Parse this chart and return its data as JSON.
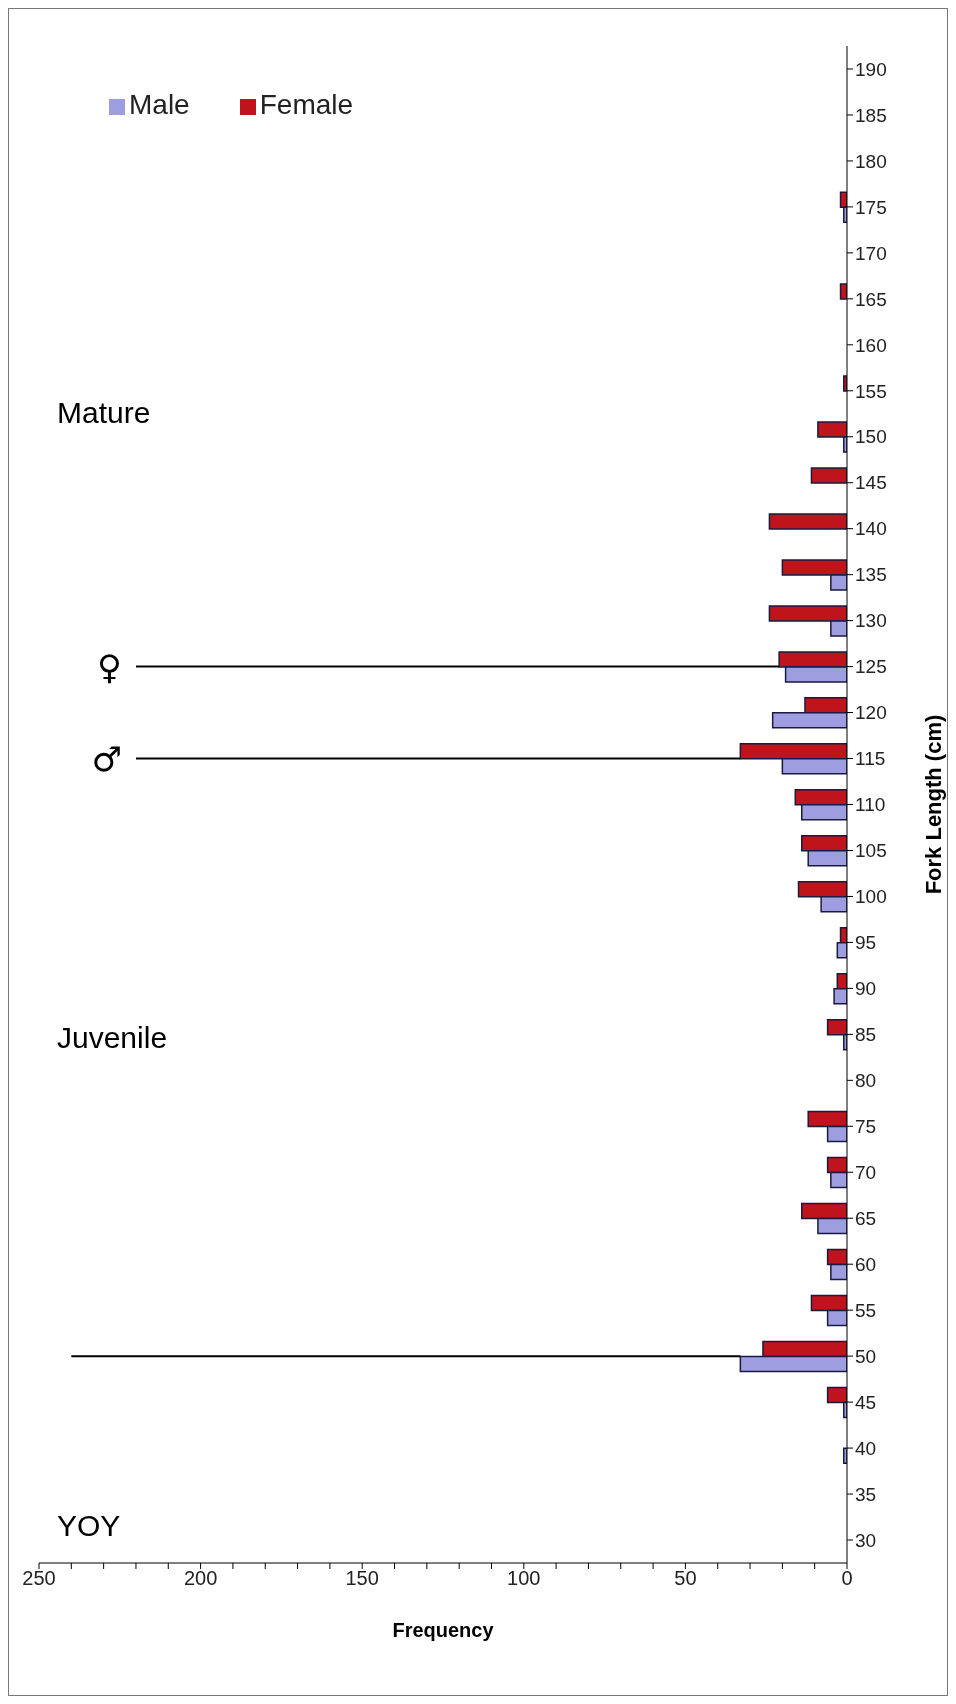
{
  "chart_data": {
    "type": "bar",
    "orientation": "horizontal",
    "xlabel": "Frequency",
    "ylabel": "Fork Length (cm)",
    "categories": [
      "190",
      "185",
      "180",
      "175",
      "170",
      "165",
      "160",
      "155",
      "150",
      "145",
      "140",
      "135",
      "130",
      "125",
      "120",
      "115",
      "110",
      "105",
      "100",
      "95",
      "90",
      "85",
      "80",
      "75",
      "70",
      "65",
      "60",
      "55",
      "50",
      "45",
      "40",
      "35",
      "30"
    ],
    "series": [
      {
        "name": "Male",
        "color": "#9d9de0",
        "values": [
          0,
          0,
          0,
          1,
          0,
          0,
          0,
          0,
          1,
          0,
          0,
          5,
          5,
          19,
          23,
          20,
          14,
          12,
          8,
          3,
          4,
          1,
          0,
          6,
          5,
          9,
          5,
          6,
          33,
          1,
          1,
          0,
          0
        ]
      },
      {
        "name": "Female",
        "color": "#c0141c",
        "values": [
          0,
          0,
          0,
          2,
          0,
          2,
          0,
          1,
          9,
          11,
          24,
          20,
          24,
          21,
          13,
          33,
          16,
          14,
          15,
          2,
          3,
          6,
          0,
          12,
          6,
          14,
          6,
          11,
          26,
          6,
          0,
          0,
          0
        ]
      }
    ],
    "xlim": [
      250,
      0
    ],
    "xticks": [
      250,
      {
        "value": 240,
        "label": null
      },
      {
        "value": 230,
        "label": null
      },
      {
        "value": 220,
        "label": null
      },
      {
        "value": 210,
        "label": null
      },
      200,
      {
        "value": 190,
        "label": null
      },
      {
        "value": 180,
        "label": null
      },
      {
        "value": 170,
        "label": null
      },
      {
        "value": 160,
        "label": null
      },
      150,
      {
        "value": 140,
        "label": null
      },
      {
        "value": 130,
        "label": null
      },
      {
        "value": 120,
        "label": null
      },
      {
        "value": 110,
        "label": null
      },
      100,
      {
        "value": 90,
        "label": null
      },
      {
        "value": 80,
        "label": null
      },
      {
        "value": 70,
        "label": null
      },
      {
        "value": 60,
        "label": null
      },
      50,
      {
        "value": 40,
        "label": null
      },
      {
        "value": 30,
        "label": null
      },
      {
        "value": 20,
        "label": null
      },
      {
        "value": 10,
        "label": null
      },
      0
    ],
    "ref_lines": [
      {
        "axis": "y",
        "value": "50",
        "color": "#000000"
      },
      {
        "axis": "y",
        "value": "115",
        "label": "♂",
        "color": "#000000"
      },
      {
        "axis": "y",
        "value": "125",
        "label": "♀",
        "color": "#000000"
      }
    ],
    "annotations": [
      "YOY",
      "Juvenile",
      "Mature"
    ],
    "legend": "top left"
  }
}
